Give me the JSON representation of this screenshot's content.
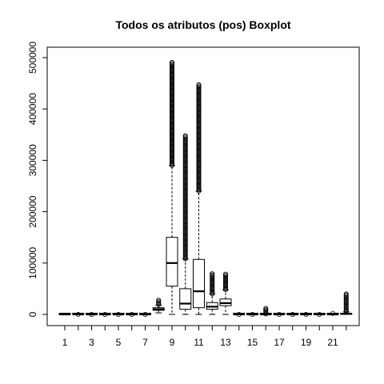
{
  "chart_data": {
    "type": "boxplot",
    "title": "Todos os atributos (pos) Boxplot",
    "xlabel": "",
    "ylabel": "",
    "ylim": [
      0,
      500000
    ],
    "y_ticks": [
      0,
      100000,
      200000,
      300000,
      400000,
      500000
    ],
    "y_tick_labels": [
      "0",
      "100000",
      "200000",
      "300000",
      "400000",
      "500000"
    ],
    "x_tick_labels": [
      "1",
      "3",
      "5",
      "7",
      "9",
      "11",
      "13",
      "15",
      "17",
      "19",
      "21"
    ],
    "x_tick_positions": [
      1,
      3,
      5,
      7,
      9,
      11,
      13,
      15,
      17,
      19,
      21
    ],
    "grid": false,
    "boxes": [
      {
        "category": "1",
        "q1": 0,
        "median": 0,
        "q3": 0,
        "whisker_low": 0,
        "whisker_high": 0,
        "outliers_range": null
      },
      {
        "category": "2",
        "q1": 0,
        "median": 0,
        "q3": 0,
        "whisker_low": 0,
        "whisker_high": 0,
        "outliers_range": [
          0,
          1500
        ]
      },
      {
        "category": "3",
        "q1": 0,
        "median": 0,
        "q3": 0,
        "whisker_low": 0,
        "whisker_high": 0,
        "outliers_range": [
          0,
          1200
        ]
      },
      {
        "category": "4",
        "q1": 0,
        "median": 0,
        "q3": 0,
        "whisker_low": 0,
        "whisker_high": 0,
        "outliers_range": [
          0,
          1200
        ]
      },
      {
        "category": "5",
        "q1": 0,
        "median": 0,
        "q3": 0,
        "whisker_low": 0,
        "whisker_high": 0,
        "outliers_range": [
          0,
          1000
        ]
      },
      {
        "category": "6",
        "q1": 0,
        "median": 0,
        "q3": 0,
        "whisker_low": 0,
        "whisker_high": 0,
        "outliers_range": [
          0,
          1000
        ]
      },
      {
        "category": "7",
        "q1": 0,
        "median": 0,
        "q3": 0,
        "whisker_low": 0,
        "whisker_high": 0,
        "outliers_range": [
          0,
          1000
        ]
      },
      {
        "category": "8",
        "q1": 8000,
        "median": 10000,
        "q3": 13000,
        "whisker_low": 3000,
        "whisker_high": 18000,
        "outliers_range": [
          19000,
          28000
        ]
      },
      {
        "category": "9",
        "q1": 55000,
        "median": 100000,
        "q3": 150000,
        "whisker_low": 0,
        "whisker_high": 290000,
        "outliers_range": [
          290000,
          492000
        ]
      },
      {
        "category": "10",
        "q1": 10000,
        "median": 21000,
        "q3": 50000,
        "whisker_low": 0,
        "whisker_high": 108000,
        "outliers_range": [
          108000,
          350000
        ]
      },
      {
        "category": "11",
        "q1": 13000,
        "median": 45000,
        "q3": 107000,
        "whisker_low": 0,
        "whisker_high": 240000,
        "outliers_range": [
          240000,
          448000
        ]
      },
      {
        "category": "12",
        "q1": 10000,
        "median": 15000,
        "q3": 23000,
        "whisker_low": 0,
        "whisker_high": 40000,
        "outliers_range": [
          40000,
          80000
        ]
      },
      {
        "category": "13",
        "q1": 17000,
        "median": 22000,
        "q3": 30000,
        "whisker_low": 0,
        "whisker_high": 48000,
        "outliers_range": [
          48000,
          80000
        ]
      },
      {
        "category": "14",
        "q1": 0,
        "median": 0,
        "q3": 0,
        "whisker_low": 0,
        "whisker_high": 0,
        "outliers_range": [
          0,
          1500
        ]
      },
      {
        "category": "15",
        "q1": 0,
        "median": 0,
        "q3": 0,
        "whisker_low": 0,
        "whisker_high": 0,
        "outliers_range": [
          0,
          1500
        ]
      },
      {
        "category": "16",
        "q1": 0,
        "median": 0,
        "q3": 0,
        "whisker_low": 0,
        "whisker_high": 0,
        "outliers_range": [
          1000,
          12000
        ]
      },
      {
        "category": "17",
        "q1": 0,
        "median": 0,
        "q3": 0,
        "whisker_low": 0,
        "whisker_high": 0,
        "outliers_range": [
          0,
          1500
        ]
      },
      {
        "category": "18",
        "q1": 0,
        "median": 0,
        "q3": 0,
        "whisker_low": 0,
        "whisker_high": 0,
        "outliers_range": [
          0,
          1500
        ]
      },
      {
        "category": "19",
        "q1": 0,
        "median": 0,
        "q3": 0,
        "whisker_low": 0,
        "whisker_high": 0,
        "outliers_range": [
          0,
          1500
        ]
      },
      {
        "category": "20",
        "q1": 0,
        "median": 0,
        "q3": 0,
        "whisker_low": 0,
        "whisker_high": 0,
        "outliers_range": [
          0,
          1500
        ]
      },
      {
        "category": "21",
        "q1": 0,
        "median": 0,
        "q3": 1000,
        "whisker_low": 0,
        "whisker_high": 2000,
        "outliers_range": [
          2000,
          4000
        ]
      },
      {
        "category": "22",
        "q1": 0,
        "median": 1000,
        "q3": 2000,
        "whisker_low": 0,
        "whisker_high": 5000,
        "outliers_range": [
          5000,
          40000
        ]
      }
    ]
  }
}
